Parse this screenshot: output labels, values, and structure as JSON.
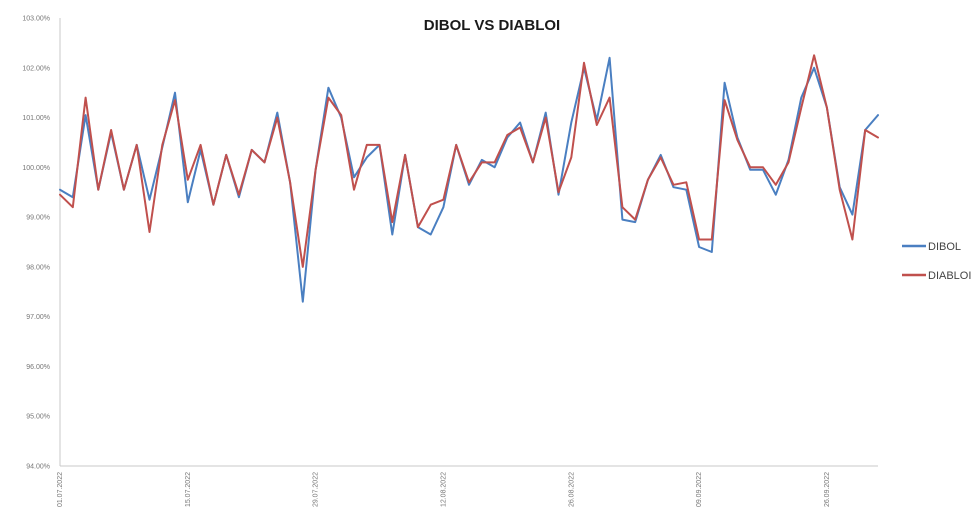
{
  "chart_data": {
    "type": "line",
    "title": "DIBOL VS DIABLOI",
    "xlabel": "",
    "ylabel": "",
    "ylim": [
      94,
      103
    ],
    "y_ticks": [
      "94.00%",
      "95.00%",
      "96.00%",
      "97.00%",
      "98.00%",
      "99.00%",
      "100.00%",
      "101.00%",
      "102.00%",
      "103.00%"
    ],
    "x_tick_labels": [
      "01.07.2022",
      "15.07.2022",
      "29.07.2022",
      "12.08.2022",
      "26.08.2022",
      "09.09.2022",
      "26.09.2022"
    ],
    "x_tick_index": [
      0,
      10,
      20,
      30,
      40,
      50,
      60
    ],
    "grid": false,
    "legend_position": "right",
    "series": [
      {
        "name": "DIBOL",
        "color": "#4a7fc1",
        "values": [
          99.55,
          99.4,
          101.05,
          99.55,
          100.7,
          99.55,
          100.45,
          99.35,
          100.4,
          101.5,
          99.3,
          100.35,
          99.25,
          100.25,
          99.4,
          100.35,
          100.1,
          101.1,
          99.7,
          97.3,
          99.95,
          101.6,
          101.0,
          99.8,
          100.2,
          100.45,
          98.65,
          100.25,
          98.8,
          98.65,
          99.2,
          100.45,
          99.65,
          100.15,
          100.0,
          100.6,
          100.9,
          100.1,
          101.1,
          99.45,
          100.9,
          102.0,
          100.95,
          102.2,
          98.95,
          98.9,
          99.75,
          100.25,
          99.6,
          99.55,
          98.4,
          98.3,
          101.7,
          100.6,
          99.95,
          99.95,
          99.45,
          100.15,
          101.4,
          102.0,
          101.2,
          99.6,
          99.05,
          100.75,
          101.05
        ]
      },
      {
        "name": "DIABLOI",
        "color": "#c0504d",
        "values": [
          99.45,
          99.2,
          101.4,
          99.55,
          100.75,
          99.55,
          100.45,
          98.7,
          100.45,
          101.35,
          99.75,
          100.45,
          99.25,
          100.25,
          99.45,
          100.35,
          100.1,
          101.0,
          99.7,
          98.0,
          99.95,
          101.4,
          101.05,
          99.55,
          100.45,
          100.45,
          98.9,
          100.25,
          98.8,
          99.25,
          99.35,
          100.45,
          99.7,
          100.1,
          100.1,
          100.65,
          100.8,
          100.1,
          101.0,
          99.5,
          100.2,
          102.1,
          100.85,
          101.4,
          99.2,
          98.95,
          99.75,
          100.2,
          99.65,
          99.7,
          98.55,
          98.55,
          101.35,
          100.55,
          100.0,
          100.0,
          99.65,
          100.1,
          101.2,
          102.25,
          101.2,
          99.55,
          98.55,
          100.75,
          100.6
        ]
      }
    ]
  }
}
